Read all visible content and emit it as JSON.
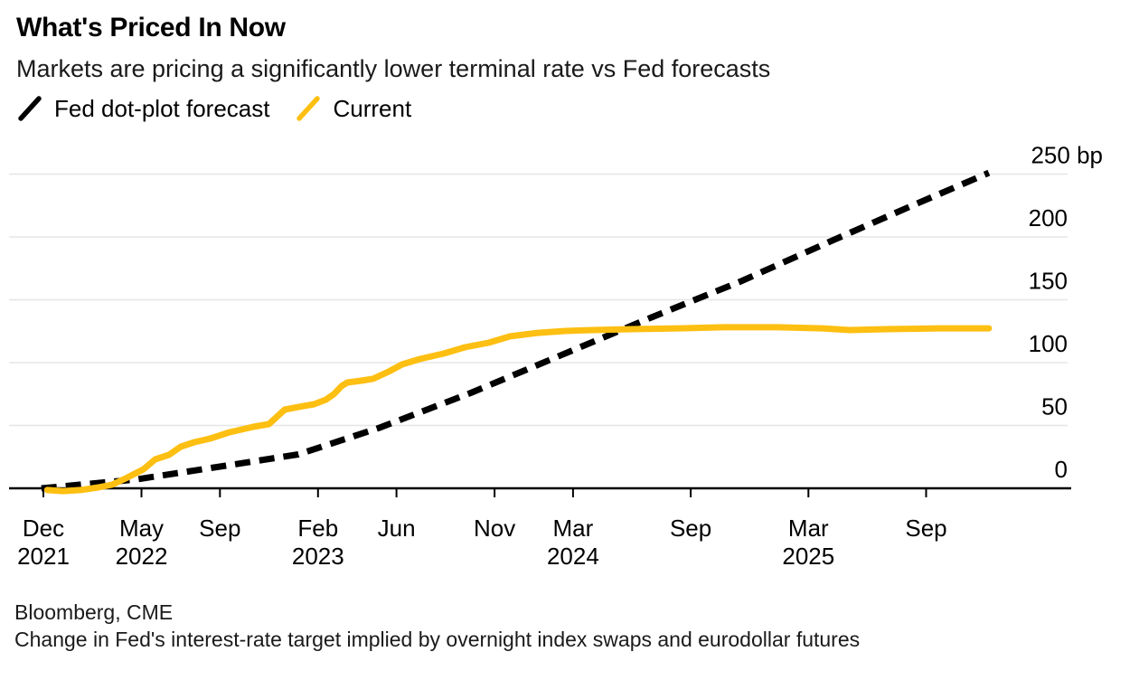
{
  "header": {
    "title": "What's Priced In Now",
    "subtitle": "Markets are pricing a significantly lower terminal rate vs Fed forecasts"
  },
  "legend": [
    {
      "label": "Fed dot-plot forecast",
      "color": "#000000"
    },
    {
      "label": "Current",
      "color": "#FDBF11"
    }
  ],
  "footer": {
    "source": "Bloomberg, CME",
    "note": "Change in Fed's interest-rate target implied by overnight index swaps and eurodollar futures"
  },
  "colors": {
    "accent_yellow": "#FDBF11",
    "line_black": "#000000",
    "gridline": "#e5e5e5",
    "axis": "#000000"
  },
  "chart_data": {
    "type": "line",
    "title": "What's Priced In Now",
    "xlabel": "",
    "ylabel": "bp",
    "x_unit": "months since Dec 2021",
    "ylim": [
      -5,
      255
    ],
    "grid": true,
    "legend_position": "top-left",
    "y_ticks": [
      {
        "value": 250,
        "label": "250 bp"
      },
      {
        "value": 200,
        "label": "200"
      },
      {
        "value": 150,
        "label": "150"
      },
      {
        "value": 100,
        "label": "100"
      },
      {
        "value": 50,
        "label": "50"
      },
      {
        "value": 0,
        "label": "0"
      }
    ],
    "x_ticks": [
      {
        "m": 0,
        "label": "Dec",
        "year": "2021"
      },
      {
        "m": 5,
        "label": "May",
        "year": "2022"
      },
      {
        "m": 9,
        "label": "Sep",
        "year": ""
      },
      {
        "m": 14,
        "label": "Feb",
        "year": "2023"
      },
      {
        "m": 18,
        "label": "Jun",
        "year": ""
      },
      {
        "m": 23,
        "label": "Nov",
        "year": ""
      },
      {
        "m": 27,
        "label": "Mar",
        "year": "2024"
      },
      {
        "m": 33,
        "label": "Sep",
        "year": ""
      },
      {
        "m": 39,
        "label": "Mar",
        "year": "2025"
      },
      {
        "m": 45,
        "label": "Sep",
        "year": ""
      }
    ],
    "series": [
      {
        "name": "Fed dot-plot forecast",
        "color": "#000000",
        "style": "dashed",
        "points": [
          [
            -0.1,
            0
          ],
          [
            4.7,
            7
          ],
          [
            9.3,
            18
          ],
          [
            13.0,
            27
          ],
          [
            17.1,
            48
          ],
          [
            21.8,
            76
          ],
          [
            26.4,
            106
          ],
          [
            31.0,
            136
          ],
          [
            35.6,
            165
          ],
          [
            40.2,
            197
          ],
          [
            44.3,
            225
          ],
          [
            48.2,
            251
          ]
        ]
      },
      {
        "name": "Current",
        "color": "#FDBF11",
        "style": "solid",
        "points": [
          [
            0.2,
            -1.4
          ],
          [
            1.0,
            -2.2
          ],
          [
            1.9,
            -1.4
          ],
          [
            2.8,
            0.7
          ],
          [
            3.5,
            2.9
          ],
          [
            4.2,
            7.9
          ],
          [
            5.1,
            15.1
          ],
          [
            5.7,
            23.0
          ],
          [
            6.4,
            26.6
          ],
          [
            7.0,
            33.1
          ],
          [
            7.7,
            36.7
          ],
          [
            8.5,
            39.6
          ],
          [
            9.5,
            44.6
          ],
          [
            10.7,
            48.9
          ],
          [
            11.5,
            51.1
          ],
          [
            11.9,
            56.8
          ],
          [
            12.3,
            62.6
          ],
          [
            13.0,
            64.7
          ],
          [
            13.8,
            66.9
          ],
          [
            14.4,
            70.5
          ],
          [
            14.8,
            74.8
          ],
          [
            15.2,
            81.3
          ],
          [
            15.5,
            84.2
          ],
          [
            16.2,
            85.6
          ],
          [
            16.8,
            87.1
          ],
          [
            17.6,
            92.8
          ],
          [
            18.3,
            98.6
          ],
          [
            19.2,
            102.9
          ],
          [
            20.4,
            107.2
          ],
          [
            21.5,
            112.2
          ],
          [
            22.7,
            115.8
          ],
          [
            23.8,
            120.9
          ],
          [
            25.2,
            123.7
          ],
          [
            26.6,
            125.2
          ],
          [
            28.0,
            125.9
          ],
          [
            30.0,
            126.6
          ],
          [
            32.4,
            127.3
          ],
          [
            34.7,
            128.1
          ],
          [
            37.4,
            128.1
          ],
          [
            39.7,
            127.3
          ],
          [
            41.1,
            125.9
          ],
          [
            43.0,
            126.6
          ],
          [
            45.7,
            127.3
          ],
          [
            48.2,
            127.3
          ]
        ]
      }
    ]
  }
}
